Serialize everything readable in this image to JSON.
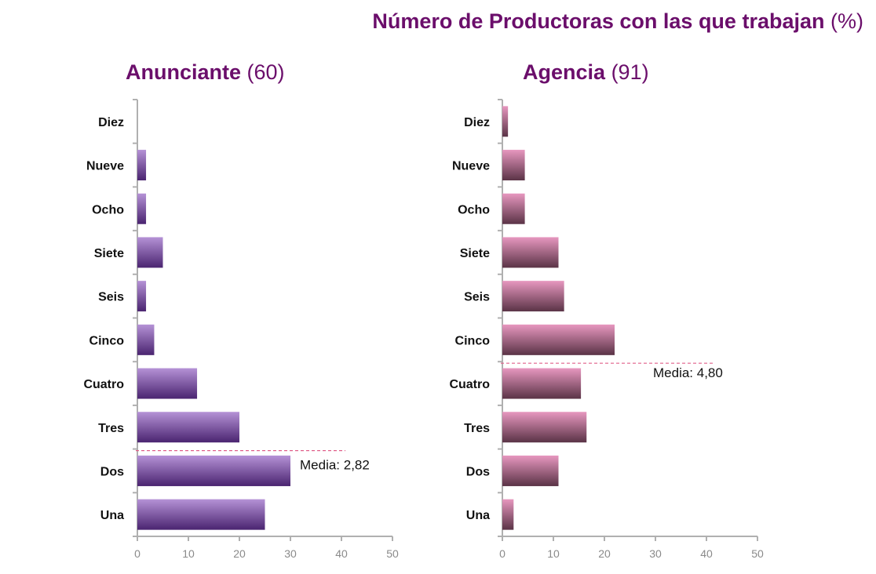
{
  "title": {
    "main": "Número de Productoras con las que trabajan",
    "unit": "(%)"
  },
  "palette": {
    "left_bar_top": "#b592d6",
    "left_bar_bottom": "#4a2470",
    "right_bar_top": "#e797bf",
    "right_bar_bottom": "#5a3346",
    "title_color": "#6b0e6b",
    "mean_line": "#e0608a",
    "axis": "#b0b0b0"
  },
  "chart_data": [
    {
      "type": "bar",
      "orientation": "horizontal",
      "title": "Anunciante",
      "title_count": "(60)",
      "categories": [
        "Una",
        "Dos",
        "Tres",
        "Cuatro",
        "Cinco",
        "Seis",
        "Siete",
        "Ocho",
        "Nueve",
        "Diez"
      ],
      "values": [
        25,
        30,
        20,
        11.7,
        3.3,
        1.7,
        5,
        1.7,
        1.7,
        0
      ],
      "xlim": [
        0,
        50
      ],
      "xticks": [
        "0",
        "10",
        "20",
        "30",
        "40",
        "50"
      ],
      "mean": {
        "label": "Media: 2,82",
        "category": "Dos"
      }
    },
    {
      "type": "bar",
      "orientation": "horizontal",
      "title": "Agencia",
      "title_count": "(91)",
      "categories": [
        "Una",
        "Dos",
        "Tres",
        "Cuatro",
        "Cinco",
        "Seis",
        "Siete",
        "Ocho",
        "Nueve",
        "Diez"
      ],
      "values": [
        2.2,
        11,
        16.5,
        15.4,
        22,
        12.1,
        11,
        4.4,
        4.4,
        1.1
      ],
      "xlim": [
        0,
        50
      ],
      "xticks": [
        "0",
        "10",
        "20",
        "30",
        "40",
        "50"
      ],
      "mean": {
        "label": "Media: 4,80",
        "category": "Cuatro"
      }
    }
  ]
}
